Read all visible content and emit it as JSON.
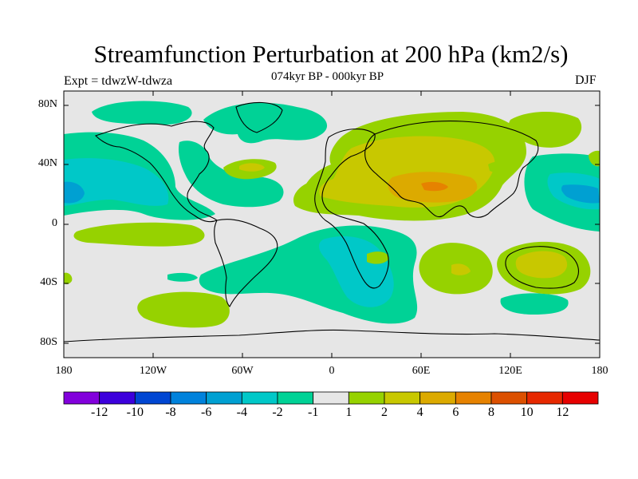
{
  "title": "Streamfunction Perturbation at 200 hPa (km2/s)",
  "subtitle": "074kyr BP - 000kyr BP",
  "experiment": "Expt = tdwzW-tdwza",
  "season": "DJF",
  "lat_labels": [
    "80N",
    "40N",
    "0",
    "40S",
    "80S"
  ],
  "lon_labels": [
    "180",
    "120W",
    "60W",
    "0",
    "60E",
    "120E",
    "180"
  ],
  "colorbar": {
    "labels": [
      "-12",
      "-10",
      "-8",
      "-6",
      "-4",
      "-2",
      "-1",
      "1",
      "2",
      "4",
      "6",
      "8",
      "10",
      "12"
    ],
    "colors": [
      "#8200dc",
      "#3c00dc",
      "#0046d2",
      "#0082dc",
      "#00a0d2",
      "#00c8c8",
      "#00d296",
      "#e6e6e6",
      "#96d200",
      "#c8c800",
      "#dcaa00",
      "#e68200",
      "#dc5000",
      "#e62800",
      "#e60000"
    ]
  },
  "map_colors": {
    "neutral": "#e6e6e6",
    "pos1": "#96d200",
    "pos2": "#c8c800",
    "pos3": "#dcaa00",
    "pos4": "#e68200",
    "neg1": "#00d296",
    "neg2": "#00c8c8",
    "neg3": "#00a0d2"
  }
}
